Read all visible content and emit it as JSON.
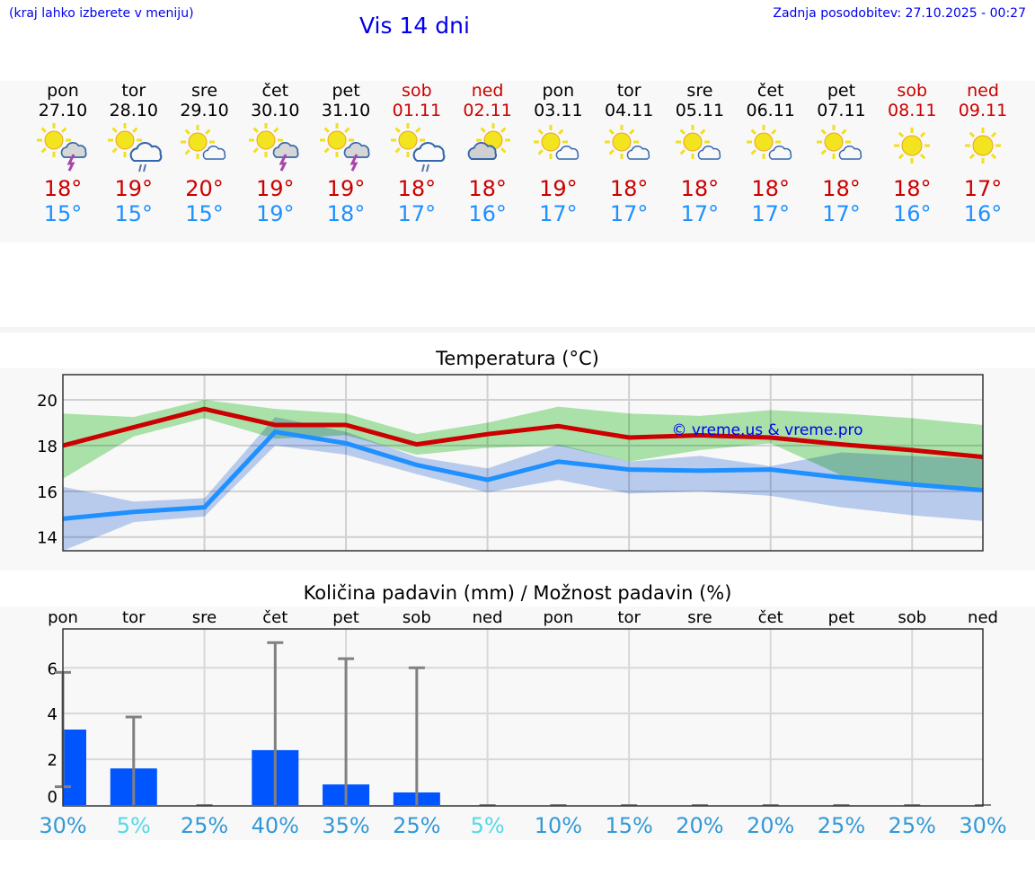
{
  "header": {
    "hint": "(kraj lahko izberete v meniju)",
    "title": "Vis 14 dni",
    "updated": "Zadnja posodobitev: 27.10.2025 - 00:27"
  },
  "days": [
    {
      "name": "pon",
      "date": "27.10",
      "weekend": false,
      "icon": "sun-cloud-thunder",
      "max": "18°",
      "min": "15°",
      "pct": "30%"
    },
    {
      "name": "tor",
      "date": "28.10",
      "weekend": false,
      "icon": "sun-cloud-rain",
      "max": "19°",
      "min": "15°",
      "pct": "5%"
    },
    {
      "name": "sre",
      "date": "29.10",
      "weekend": false,
      "icon": "sun-small-cloud",
      "max": "20°",
      "min": "15°",
      "pct": "25%"
    },
    {
      "name": "čet",
      "date": "30.10",
      "weekend": false,
      "icon": "sun-cloud-thunder",
      "max": "19°",
      "min": "19°",
      "pct": "40%"
    },
    {
      "name": "pet",
      "date": "31.10",
      "weekend": false,
      "icon": "sun-cloud-thunder",
      "max": "19°",
      "min": "18°",
      "pct": "35%"
    },
    {
      "name": "sob",
      "date": "01.11",
      "weekend": true,
      "icon": "sun-cloud-rain",
      "max": "18°",
      "min": "17°",
      "pct": "25%"
    },
    {
      "name": "ned",
      "date": "02.11",
      "weekend": true,
      "icon": "cloud-sun",
      "max": "18°",
      "min": "16°",
      "pct": "5%"
    },
    {
      "name": "pon",
      "date": "03.11",
      "weekend": false,
      "icon": "sun-small-cloud",
      "max": "19°",
      "min": "17°",
      "pct": "10%"
    },
    {
      "name": "tor",
      "date": "04.11",
      "weekend": false,
      "icon": "sun-small-cloud",
      "max": "18°",
      "min": "17°",
      "pct": "15%"
    },
    {
      "name": "sre",
      "date": "05.11",
      "weekend": false,
      "icon": "sun-small-cloud",
      "max": "18°",
      "min": "17°",
      "pct": "20%"
    },
    {
      "name": "čet",
      "date": "06.11",
      "weekend": false,
      "icon": "sun-small-cloud",
      "max": "18°",
      "min": "17°",
      "pct": "20%"
    },
    {
      "name": "pet",
      "date": "07.11",
      "weekend": false,
      "icon": "sun-small-cloud",
      "max": "18°",
      "min": "17°",
      "pct": "25%"
    },
    {
      "name": "sob",
      "date": "08.11",
      "weekend": true,
      "icon": "sun",
      "max": "18°",
      "min": "16°",
      "pct": "25%"
    },
    {
      "name": "ned",
      "date": "09.11",
      "weekend": true,
      "icon": "sun",
      "max": "17°",
      "min": "16°",
      "pct": "30%"
    }
  ],
  "colors": {
    "max": "#cc0000",
    "min": "#1e90ff",
    "max_band": "#aee8ae",
    "min_band": "#aec6f2",
    "bar": "#0055ff",
    "pct": "#3399d6",
    "pct_low": "#55d8e8",
    "errbar": "#808080"
  },
  "chart_data": [
    {
      "type": "line",
      "title": "Temperatura (°C)",
      "ylim": [
        13.4,
        21.1
      ],
      "yticks": [
        14,
        16,
        18,
        20
      ],
      "grid": true,
      "watermark": "© vreme.us & vreme.pro",
      "series": [
        {
          "name": "max",
          "values": [
            18.0,
            18.8,
            19.6,
            18.9,
            18.9,
            18.05,
            18.5,
            18.85,
            18.35,
            18.45,
            18.35,
            18.05,
            17.8,
            17.5
          ],
          "band_hi": [
            19.4,
            19.25,
            20.0,
            19.6,
            19.4,
            18.5,
            19.0,
            19.7,
            19.4,
            19.3,
            19.55,
            19.4,
            19.2,
            18.9
          ],
          "band_lo": [
            16.55,
            18.4,
            19.2,
            18.3,
            18.45,
            17.6,
            17.9,
            18.0,
            17.3,
            17.8,
            18.1,
            16.7,
            16.35,
            16.15
          ]
        },
        {
          "name": "min",
          "values": [
            14.8,
            15.1,
            15.3,
            18.6,
            18.1,
            17.15,
            16.5,
            17.3,
            16.95,
            16.9,
            16.95,
            16.6,
            16.3,
            16.05
          ],
          "band_hi": [
            16.2,
            15.55,
            15.7,
            19.25,
            18.6,
            17.5,
            17.0,
            18.05,
            17.3,
            17.55,
            17.1,
            17.7,
            17.55,
            17.4
          ],
          "band_lo": [
            13.4,
            14.65,
            14.9,
            18.0,
            17.6,
            16.75,
            15.95,
            16.5,
            15.9,
            16.0,
            15.8,
            15.3,
            14.95,
            14.7
          ]
        }
      ]
    },
    {
      "type": "bar",
      "title": "Količina padavin (mm) / Možnost padavin (%)",
      "ylim": [
        0,
        7.7
      ],
      "yticks": [
        0,
        2,
        4,
        6
      ],
      "grid": true,
      "values": [
        3.3,
        1.6,
        0,
        2.4,
        0.9,
        0.55,
        0,
        0,
        0,
        0,
        0,
        0,
        0,
        0
      ],
      "err_hi": [
        5.8,
        3.85,
        0,
        7.1,
        6.4,
        6.0,
        0,
        0,
        0,
        0,
        0,
        0,
        0,
        0
      ],
      "err_lo": [
        0.8,
        0,
        0,
        0,
        0,
        0,
        0,
        0,
        0,
        0,
        0,
        0,
        0,
        0
      ]
    }
  ]
}
